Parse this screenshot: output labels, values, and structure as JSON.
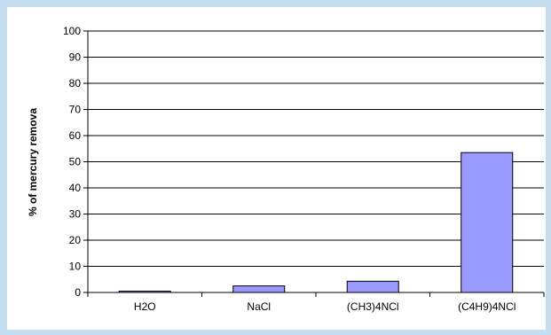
{
  "chart_data": {
    "type": "bar",
    "title": "",
    "xlabel": "",
    "ylabel": "% of mercury remova",
    "categories": [
      "H2O",
      "NaCl",
      "(CH3)4NCl",
      "(C4H9)4NCl"
    ],
    "values": [
      0.5,
      2.5,
      4.3,
      53.5
    ],
    "ylim": [
      0,
      100
    ],
    "y_ticks": [
      "0",
      "10",
      "20",
      "30",
      "40",
      "50",
      "60",
      "70",
      "80",
      "90",
      "100"
    ],
    "grid": true,
    "legend": "none",
    "colors": {
      "bar_fill": "#9999ff",
      "bar_stroke": "#000000",
      "gridline": "#000000",
      "page_border": "#c5dff0"
    }
  }
}
